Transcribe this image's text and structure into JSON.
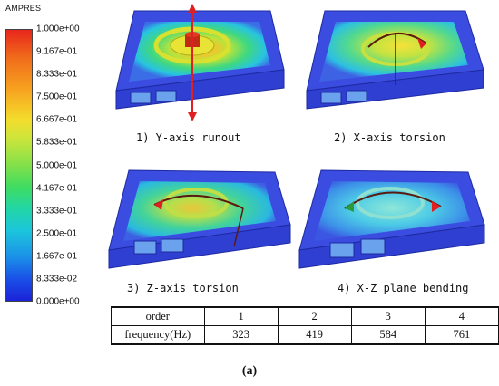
{
  "legend": {
    "title": "AMPRES",
    "ticks": [
      "1.000e+00",
      "9.167e-01",
      "8.333e-01",
      "7.500e-01",
      "6.667e-01",
      "5.833e-01",
      "5.000e-01",
      "4.167e-01",
      "3.333e-01",
      "2.500e-01",
      "1.667e-01",
      "8.333e-02",
      "0.000e+00"
    ]
  },
  "panels": [
    {
      "caption": "1) Y-axis runout"
    },
    {
      "caption": "2) X-axis torsion"
    },
    {
      "caption": "3) Z-axis torsion"
    },
    {
      "caption": "4) X-Z plane bending"
    }
  ],
  "table": {
    "header_label": "order",
    "orders": [
      "1",
      "2",
      "3",
      "4"
    ],
    "row_label": "frequency(Hz)",
    "frequencies": [
      "323",
      "419",
      "584",
      "761"
    ]
  },
  "figure_label": "(a)",
  "colors": {
    "frame": "#3b4de0",
    "arrow_red": "#e02020",
    "arrow_dark": "#5a1a10"
  }
}
